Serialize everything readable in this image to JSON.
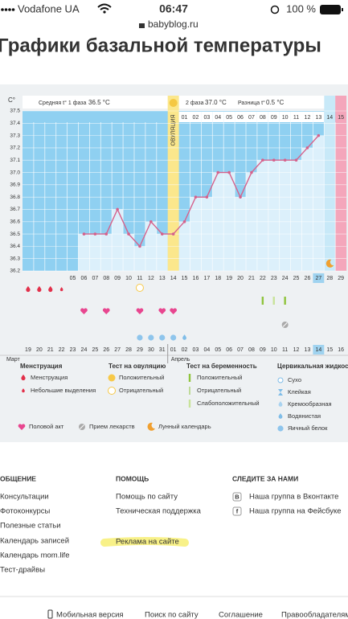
{
  "status_bar": {
    "carrier": "Vodafone UA",
    "time": "06:47",
    "url": "babyblog.ru",
    "battery": "100 %"
  },
  "page_title": "Графики базальной температуры",
  "chart_data": {
    "type": "line",
    "y_unit": "C°",
    "summary": {
      "phase1_label": "Средняя t° 1 фаза",
      "phase1_value": "36.5 °C",
      "ovulation": "ОВУЛЯЦИЯ",
      "phase2_label": "2 фаза",
      "phase2_value": "37.0 °C",
      "difference_label": "Разница t°",
      "difference_value": "0.5 °C"
    },
    "categories": [
      null,
      null,
      null,
      null,
      "05",
      "06",
      "07",
      "08",
      "09",
      "10",
      "11",
      "12",
      "13",
      "14",
      "15",
      "16",
      "17",
      "18",
      "19",
      "20",
      "21",
      "22",
      "23",
      "24",
      "25",
      "26",
      "27",
      "28",
      "29"
    ],
    "values": [
      null,
      null,
      null,
      null,
      null,
      36.5,
      36.5,
      36.5,
      36.7,
      36.5,
      36.4,
      36.6,
      36.5,
      36.5,
      36.6,
      36.8,
      36.8,
      37.0,
      37.0,
      36.8,
      37.0,
      37.1,
      37.1,
      37.1,
      37.1,
      37.2,
      37.3,
      null,
      null
    ],
    "ovulation_index": 13,
    "phase2_days": [
      "01",
      "02",
      "03",
      "04",
      "05",
      "06",
      "07",
      "08",
      "09",
      "10",
      "11",
      "12",
      "13",
      "14",
      "15"
    ],
    "dates": [
      "19",
      "20",
      "21",
      "22",
      "23",
      "24",
      "25",
      "26",
      "27",
      "28",
      "29",
      "30",
      "31",
      "01",
      "02",
      "03",
      "04",
      "05",
      "06",
      "07",
      "08",
      "09",
      "10",
      "11",
      "12",
      "13",
      "14",
      "15",
      "16"
    ],
    "weekend_dates": [
      4,
      5,
      11,
      12,
      18,
      19
    ],
    "today_index": 26,
    "months": [
      "Март",
      "Апрель"
    ],
    "ylim": [
      36.2,
      37.5
    ],
    "yticks": [
      36.2,
      36.3,
      36.4,
      36.5,
      36.6,
      36.7,
      36.8,
      36.9,
      {
        "value": 37,
        "label": "37.0"
      },
      37.1,
      37.2,
      37.3,
      37.4,
      37.5
    ],
    "color": "#d6628c",
    "grid": true
  },
  "legend": {
    "groups": [
      {
        "title": "Менструация",
        "items": [
          {
            "label": "Менструация",
            "days": [
              0,
              1,
              2
            ]
          },
          {
            "label": "Небольшие выделения",
            "days": [
              3
            ]
          }
        ]
      },
      {
        "title": "Тест на овуляцию",
        "items": [
          {
            "label": "Положительный",
            "days": []
          },
          {
            "label": "Отрицательный",
            "days": [
              10
            ]
          }
        ]
      },
      {
        "title": "Тест на беременность",
        "items": [
          {
            "label": "Положительный",
            "days": [
              21,
              23
            ]
          },
          {
            "label": "Отрицательный",
            "days": []
          },
          {
            "label": "Слабоположительный",
            "days": [
              22
            ]
          }
        ]
      },
      {
        "title": "Цервикальная жидкость",
        "items": [
          {
            "label": "Сухо",
            "days": []
          },
          {
            "label": "Клейкая",
            "days": []
          },
          {
            "label": "Кремообразная",
            "days": []
          },
          {
            "label": "Водянистая",
            "days": [
              14
            ]
          },
          {
            "label": "Яичный белок",
            "days": [
              10,
              11,
              12,
              13
            ]
          }
        ]
      }
    ],
    "extras": [
      {
        "label": "Половой акт",
        "days": [
          5,
          7,
          10,
          12,
          13
        ]
      },
      {
        "label": "Прием лекарств",
        "days": [
          23
        ]
      },
      {
        "label": "Лунный календарь",
        "days": [
          27
        ]
      }
    ]
  },
  "footer": {
    "columns": [
      {
        "title": "ОБЩЕНИЕ",
        "links": [
          {
            "label": "Консультации"
          },
          {
            "label": "Фотоконкурсы"
          },
          {
            "label": "Полезные статьи"
          },
          {
            "label": "Календарь записей"
          },
          {
            "label": "Календарь mom.life"
          },
          {
            "label": "Тест-драйвы"
          }
        ]
      },
      {
        "title": "ПОМОЩЬ",
        "links": [
          {
            "label": "Помощь по сайту"
          },
          {
            "label": "Техническая поддержка"
          },
          {
            "label": "Реклама на сайте"
          }
        ]
      },
      {
        "title": "СЛЕДИТЕ ЗА НАМИ",
        "links": [
          {
            "label": "Наша группа в Вконтакте",
            "icon": "В"
          },
          {
            "label": "Наша группа на Фейсбуке",
            "icon": "f"
          }
        ]
      }
    ],
    "bottom_links": [
      "Мобильная версия",
      "Поиск по сайту",
      "Соглашение",
      "Правообладателям"
    ]
  }
}
